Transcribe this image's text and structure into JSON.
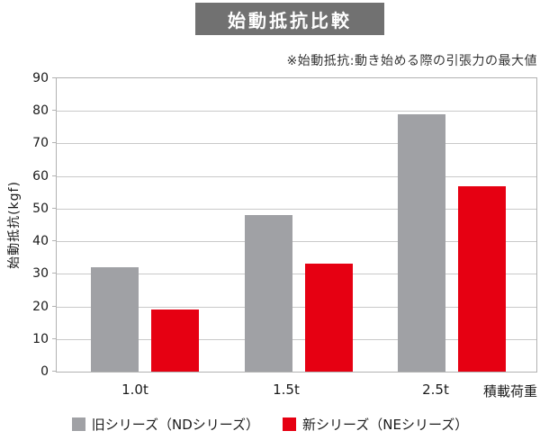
{
  "header": {
    "title": "始動抵抗比較",
    "note": "※始動抵抗:動き始める際の引張力の最大値"
  },
  "colors": {
    "title_bg": "#717171",
    "title_text": "#ffffff",
    "old_series": "#a0a1a5",
    "new_series": "#e60012",
    "gridline": "#c9c9c9",
    "plot_border": "#b2b2b2"
  },
  "chart_data": {
    "type": "bar",
    "title": "始動抵抗比較",
    "categories": [
      "1.0t",
      "1.5t",
      "2.5t"
    ],
    "series": [
      {
        "name": "旧シリーズ（NDシリーズ）",
        "color": "#a0a1a5",
        "values": [
          32,
          48,
          79
        ]
      },
      {
        "name": "新シリーズ（NEシリーズ）",
        "color": "#e60012",
        "values": [
          19,
          33,
          57
        ]
      }
    ],
    "ylabel": "始動抵抗(kgf)",
    "xlabel": "積載荷重",
    "ylim": [
      0,
      90
    ],
    "yticks": [
      0,
      10,
      20,
      30,
      40,
      50,
      60,
      70,
      80,
      90
    ],
    "grid": true,
    "legend_position": "bottom"
  },
  "legend": {
    "old_label": "旧シリーズ（NDシリーズ）",
    "new_label": "新シリーズ（NEシリーズ）"
  },
  "x_axis": {
    "unit_label": "積載荷重"
  }
}
